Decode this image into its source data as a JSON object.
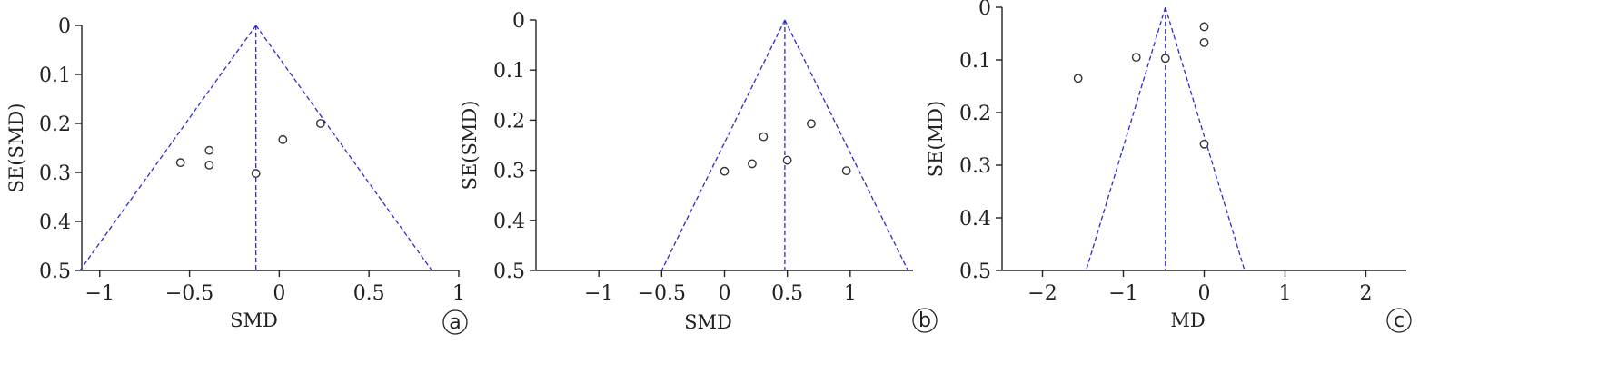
{
  "chart_data": [
    {
      "type": "scatter",
      "panel_label": "a",
      "xlabel": "SMD",
      "ylabel": "SE(SMD)",
      "xlim": [
        -1.1,
        1.0
      ],
      "ylim": [
        0.5,
        0
      ],
      "x_ticks": [
        -1,
        -0.5,
        0,
        0.5,
        1
      ],
      "x_tick_labels": [
        "−1",
        "−0.5",
        "0",
        "0.5",
        "1"
      ],
      "y_ticks": [
        0,
        0.1,
        0.2,
        0.3,
        0.4,
        0.5
      ],
      "y_tick_labels": [
        "0",
        "0.1",
        "0.2",
        "0.3",
        "0.4",
        "0.5"
      ],
      "pooled_effect": -0.13,
      "funnel_se_max": 0.5,
      "points": [
        {
          "x": -0.55,
          "y": 0.28
        },
        {
          "x": -0.39,
          "y": 0.255
        },
        {
          "x": -0.39,
          "y": 0.285
        },
        {
          "x": -0.13,
          "y": 0.302
        },
        {
          "x": 0.02,
          "y": 0.233
        },
        {
          "x": 0.23,
          "y": 0.2
        }
      ],
      "line_color": "#2b2bd6"
    },
    {
      "type": "scatter",
      "panel_label": "b",
      "xlabel": "SMD",
      "ylabel": "SE(SMD)",
      "xlim": [
        -1.5,
        1.5
      ],
      "ylim": [
        0.5,
        0
      ],
      "x_ticks": [
        -1,
        -0.5,
        0,
        0.5,
        1
      ],
      "x_tick_labels": [
        "−1",
        "−0.5",
        "0",
        "0.5",
        "1"
      ],
      "y_ticks": [
        0,
        0.1,
        0.2,
        0.3,
        0.4,
        0.5
      ],
      "y_tick_labels": [
        "0",
        "0.1",
        "0.2",
        "0.3",
        "0.4",
        "0.5"
      ],
      "pooled_effect": 0.48,
      "funnel_se_max": 0.5,
      "points": [
        {
          "x": 0.0,
          "y": 0.302
        },
        {
          "x": 0.22,
          "y": 0.287
        },
        {
          "x": 0.31,
          "y": 0.233
        },
        {
          "x": 0.5,
          "y": 0.28
        },
        {
          "x": 0.69,
          "y": 0.207
        },
        {
          "x": 0.97,
          "y": 0.301
        }
      ],
      "line_color": "#2b2bd6"
    },
    {
      "type": "scatter",
      "panel_label": "c",
      "xlabel": "MD",
      "ylabel": "SE(MD)",
      "xlim": [
        -2.5,
        2.5
      ],
      "ylim": [
        0.5,
        0
      ],
      "x_ticks": [
        -2,
        -1,
        0,
        1,
        2
      ],
      "x_tick_labels": [
        "−2",
        "−1",
        "0",
        "1",
        "2"
      ],
      "y_ticks": [
        0,
        0.1,
        0.2,
        0.3,
        0.4,
        0.5
      ],
      "y_tick_labels": [
        "0",
        "0.1",
        "0.2",
        "0.3",
        "0.4",
        "0.5"
      ],
      "pooled_effect": -0.48,
      "funnel_se_max": 0.5,
      "points": [
        {
          "x": 0.0,
          "y": 0.037
        },
        {
          "x": 0.0,
          "y": 0.067
        },
        {
          "x": -0.84,
          "y": 0.095
        },
        {
          "x": -0.48,
          "y": 0.097
        },
        {
          "x": -1.56,
          "y": 0.135
        },
        {
          "x": 0.0,
          "y": 0.26
        }
      ],
      "line_color": "#2b2bd6"
    }
  ]
}
